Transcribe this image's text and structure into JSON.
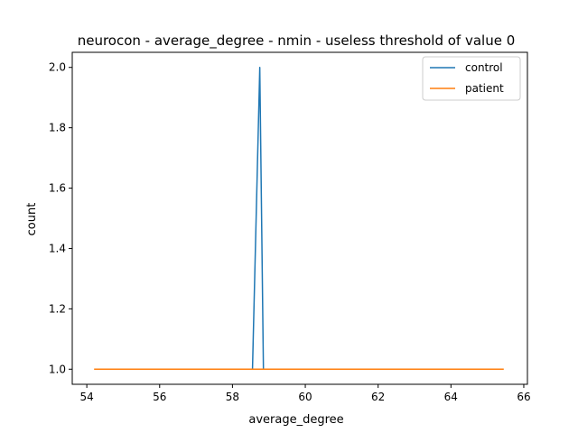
{
  "chart_data": {
    "type": "line",
    "title": "neurocon - average_degree - nmin - useless threshold of value 0",
    "xlabel": "average_degree",
    "ylabel": "count",
    "xlim": [
      53.6,
      66.1
    ],
    "ylim": [
      0.95,
      2.05
    ],
    "xticks": [
      54,
      56,
      58,
      60,
      62,
      64,
      66
    ],
    "yticks": [
      1.0,
      1.2,
      1.4,
      1.6,
      1.8,
      2.0
    ],
    "xtick_labels": [
      "54",
      "56",
      "58",
      "60",
      "62",
      "64",
      "66"
    ],
    "ytick_labels": [
      "1.0",
      "1.2",
      "1.4",
      "1.6",
      "1.8",
      "2.0"
    ],
    "grid": false,
    "legend_position": "top-right",
    "series": [
      {
        "name": "control",
        "color": "#1f77b4",
        "x": [
          55.75,
          58.55,
          58.75,
          58.85,
          62.75
        ],
        "y": [
          1,
          1,
          2,
          1,
          1
        ]
      },
      {
        "name": "patient",
        "color": "#ff7f0e",
        "x": [
          54.2,
          65.45
        ],
        "y": [
          1,
          1
        ]
      }
    ]
  }
}
